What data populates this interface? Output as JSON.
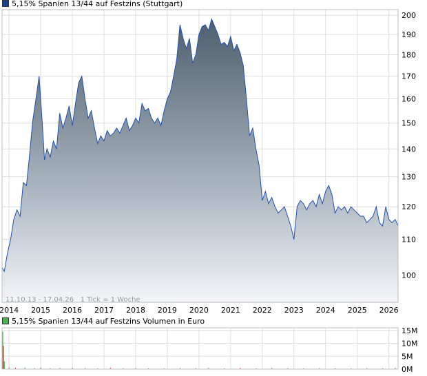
{
  "price_legend": {
    "label": "5,15% Spanien 13/44 auf Festzins (Stuttgart)",
    "color": "#1a3f8a"
  },
  "volume_legend": {
    "label": "5,15% Spanien 13/44 auf Festzins Volumen in Euro",
    "color": "#4caf50"
  },
  "chart_note": "11.10.13 - 17.04.26   1 Tick = 1 Woche",
  "chart_data": [
    {
      "type": "area",
      "x_unit": "year",
      "xlim": [
        2013.78,
        2026.29
      ],
      "ylim": [
        93,
        203
      ],
      "y_scale": "log",
      "grid": true,
      "x_ticks": [
        "2014",
        "2015",
        "2016",
        "2017",
        "2018",
        "2019",
        "2020",
        "2021",
        "2022",
        "2023",
        "2024",
        "2025",
        "2026"
      ],
      "y_ticks": [
        100,
        110,
        120,
        130,
        140,
        150,
        160,
        170,
        180,
        190,
        200
      ],
      "x": [
        2013.78,
        2013.85,
        2013.95,
        2014.05,
        2014.15,
        2014.25,
        2014.35,
        2014.45,
        2014.55,
        2014.65,
        2014.75,
        2014.85,
        2014.95,
        2015.05,
        2015.12,
        2015.2,
        2015.3,
        2015.4,
        2015.5,
        2015.6,
        2015.7,
        2015.8,
        2015.9,
        2016.0,
        2016.1,
        2016.2,
        2016.3,
        2016.4,
        2016.5,
        2016.6,
        2016.7,
        2016.8,
        2016.9,
        2017.0,
        2017.1,
        2017.2,
        2017.3,
        2017.4,
        2017.5,
        2017.6,
        2017.7,
        2017.8,
        2017.9,
        2018.0,
        2018.1,
        2018.2,
        2018.3,
        2018.4,
        2018.5,
        2018.6,
        2018.7,
        2018.8,
        2018.9,
        2019.0,
        2019.1,
        2019.2,
        2019.3,
        2019.4,
        2019.5,
        2019.6,
        2019.7,
        2019.8,
        2019.9,
        2020.0,
        2020.1,
        2020.2,
        2020.3,
        2020.4,
        2020.5,
        2020.6,
        2020.7,
        2020.8,
        2020.9,
        2021.0,
        2021.1,
        2021.2,
        2021.3,
        2021.4,
        2021.5,
        2021.6,
        2021.7,
        2021.8,
        2021.9,
        2022.0,
        2022.1,
        2022.2,
        2022.3,
        2022.4,
        2022.5,
        2022.6,
        2022.7,
        2022.8,
        2022.9,
        2023.0,
        2023.1,
        2023.2,
        2023.3,
        2023.4,
        2023.5,
        2023.6,
        2023.7,
        2023.8,
        2023.9,
        2024.0,
        2024.1,
        2024.2,
        2024.3,
        2024.4,
        2024.5,
        2024.6,
        2024.7,
        2024.8,
        2024.9,
        2025.0,
        2025.1,
        2025.2,
        2025.3,
        2025.4,
        2025.5,
        2025.6,
        2025.7,
        2025.8,
        2025.9,
        2026.0,
        2026.1,
        2026.2,
        2026.29
      ],
      "values": [
        102,
        101,
        106,
        110,
        116,
        119,
        117,
        128,
        127,
        138,
        151,
        160,
        170,
        150,
        136,
        140,
        137,
        143,
        140,
        154,
        148,
        152,
        157,
        149,
        158,
        167,
        170,
        160,
        152,
        155,
        148,
        142,
        145,
        143,
        147,
        145,
        146,
        148,
        146,
        149,
        152,
        147,
        149,
        152,
        150,
        158,
        155,
        156,
        152,
        150,
        152,
        149,
        155,
        160,
        163,
        170,
        178,
        195,
        188,
        183,
        188,
        176,
        180,
        190,
        194,
        195,
        192,
        198,
        194,
        190,
        185,
        186,
        184,
        189,
        182,
        185,
        181,
        175,
        160,
        145,
        148,
        140,
        134,
        122,
        125,
        121,
        123,
        120,
        118,
        119,
        120,
        117,
        114,
        110,
        120,
        122,
        121,
        119,
        121,
        122,
        120,
        124,
        121,
        125,
        127,
        124,
        118,
        120,
        119,
        120,
        118,
        120,
        119,
        118,
        117,
        117,
        115,
        116,
        117,
        120,
        115,
        114,
        120,
        116,
        115,
        116,
        114
      ]
    },
    {
      "type": "bar",
      "title": "",
      "xlim": [
        2013.78,
        2026.29
      ],
      "ylim": [
        0,
        16
      ],
      "y_unit": "M",
      "y_ticks": [
        "15M",
        "10M",
        "5M",
        "0M"
      ],
      "x": [
        2013.8,
        2013.82,
        2013.85,
        2014.0,
        2014.2,
        2014.5,
        2014.8,
        2015.0,
        2015.3,
        2015.6,
        2016.0,
        2016.4,
        2016.8,
        2017.2,
        2017.6,
        2018.0,
        2018.4,
        2018.9,
        2019.4,
        2019.9,
        2020.3,
        2020.8,
        2021.3,
        2021.8,
        2022.3,
        2022.8,
        2023.3,
        2023.8,
        2024.3,
        2024.8,
        2025.3,
        2025.8,
        2026.2
      ],
      "values": [
        14.5,
        9.0,
        3.0,
        0.7,
        0.5,
        0.6,
        0.4,
        0.5,
        0.4,
        0.5,
        0.4,
        0.4,
        0.3,
        0.5,
        0.3,
        0.4,
        0.3,
        0.3,
        0.4,
        0.3,
        0.5,
        0.3,
        0.4,
        0.3,
        0.5,
        0.3,
        0.3,
        0.4,
        0.3,
        0.3,
        0.4,
        0.3,
        0.5
      ]
    }
  ]
}
